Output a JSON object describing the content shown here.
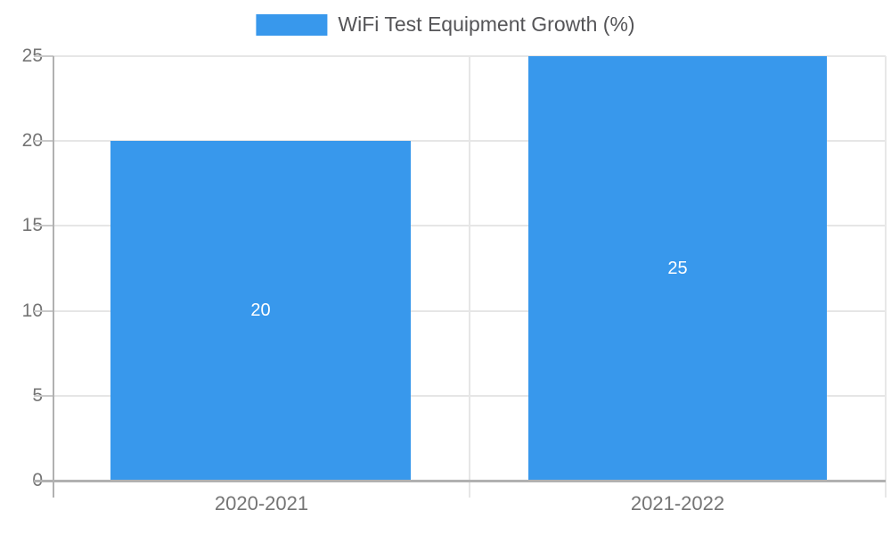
{
  "chart_data": {
    "type": "bar",
    "title": "WiFi Test Equipment Growth (%)",
    "categories": [
      "2020-2021",
      "2021-2022"
    ],
    "values": [
      20,
      25
    ],
    "ylim": [
      0,
      25
    ],
    "ytick_labels_desc": [
      "25",
      "20",
      "15",
      "10",
      "5",
      "0"
    ],
    "xlabel": "",
    "ylabel": "",
    "legend_position": "top-center",
    "grid": "horizontal gridlines every 5 units; vertical divider between category bands",
    "bar_color": "#3898ec",
    "axis_color": "#b1b1b1",
    "gridline_color": "#e6e6e6",
    "tick_label_color": "#757575",
    "legend_text_color": "#555558",
    "value_label_color": "#ffffff",
    "background_color": "#ffffff"
  }
}
